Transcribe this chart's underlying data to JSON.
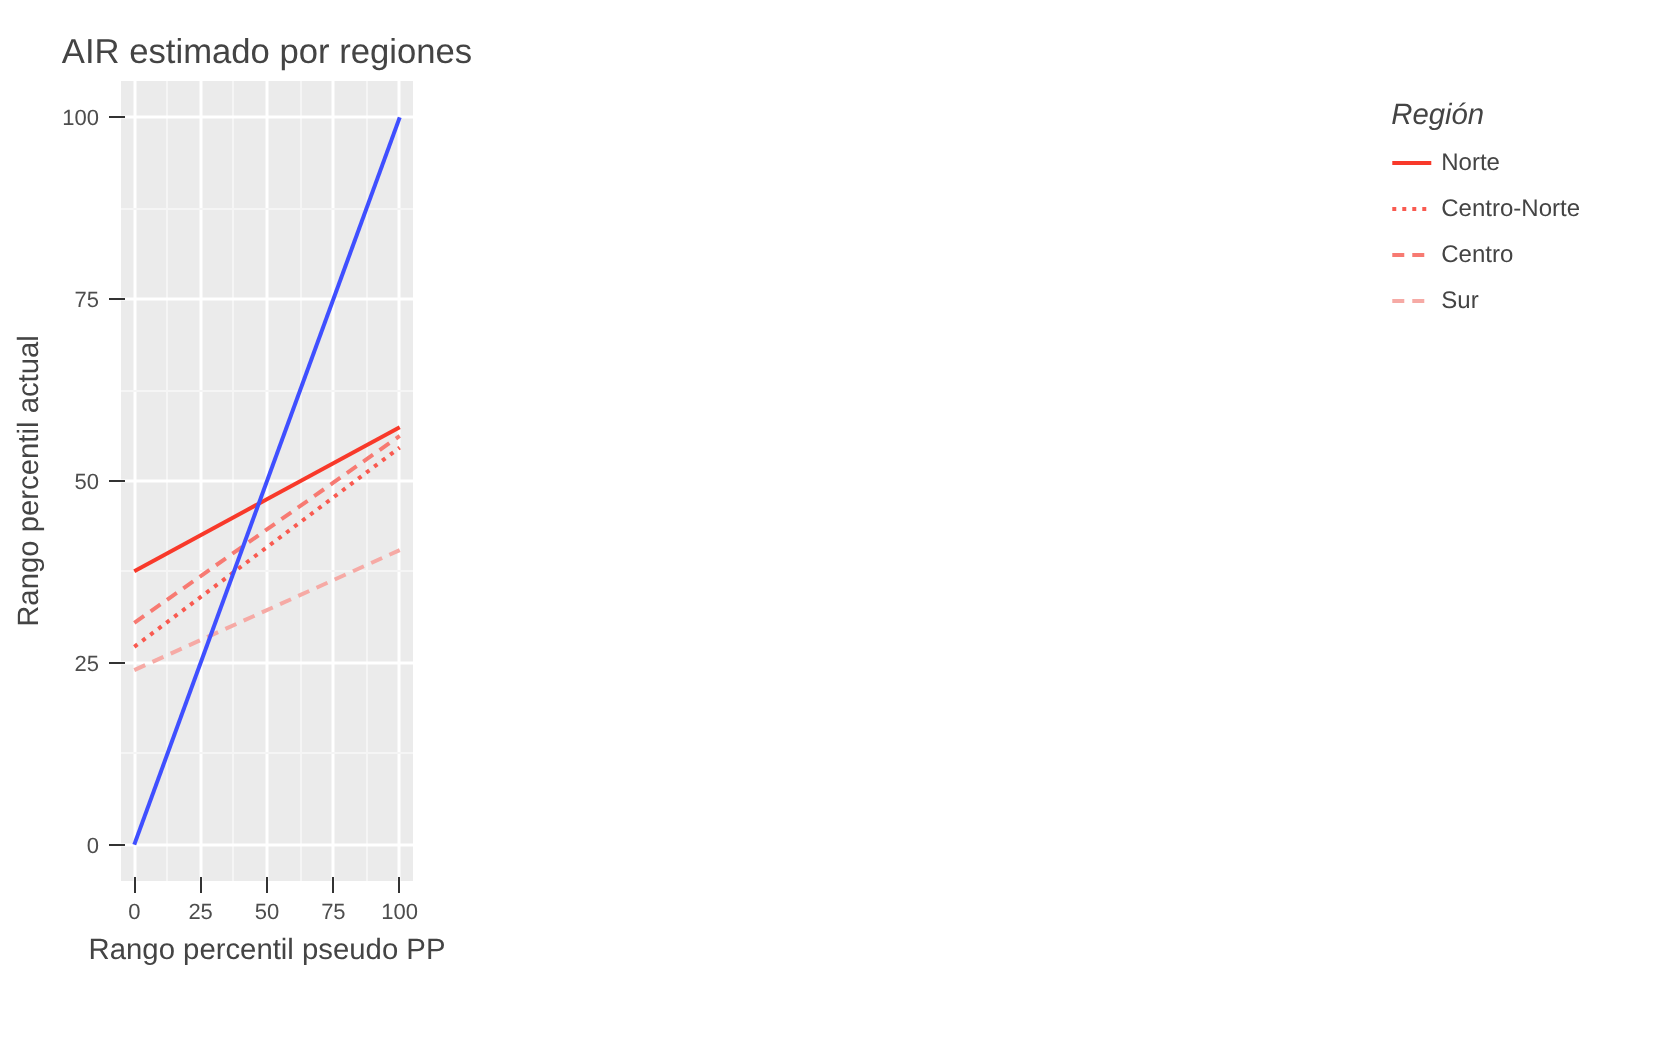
{
  "chart_data": {
    "type": "line",
    "title": "AIR estimado por regiones",
    "xlabel": "Rango percentil pseudo PP",
    "ylabel": "Rango percentil actual",
    "legend_title": "Región",
    "x": [
      0,
      100
    ],
    "series": [
      {
        "name": "Norte",
        "color": "#f8392a",
        "values": [
          37.6,
          57.4
        ],
        "line_style": "solid"
      },
      {
        "name": "Centro-Norte",
        "color": "#f95a50",
        "values": [
          27.2,
          54.6
        ],
        "line_style": "dotted"
      },
      {
        "name": "Centro",
        "color": "#f77a72",
        "values": [
          30.5,
          56.2
        ],
        "line_style": "dashed"
      },
      {
        "name": "Sur",
        "color": "#f6aaa5",
        "values": [
          24.0,
          40.5
        ],
        "line_style": "dashed"
      },
      {
        "color": "#3f4fff",
        "values": [
          0,
          100
        ],
        "line_style": "solid"
      }
    ],
    "xlim": [
      -5,
      105
    ],
    "ylim": [
      -5,
      105
    ],
    "xticks": [
      0,
      25,
      50,
      75,
      100
    ],
    "yticks": [
      0,
      25,
      50,
      75,
      100
    ],
    "grid": true,
    "legend": "right",
    "marker": "none"
  }
}
